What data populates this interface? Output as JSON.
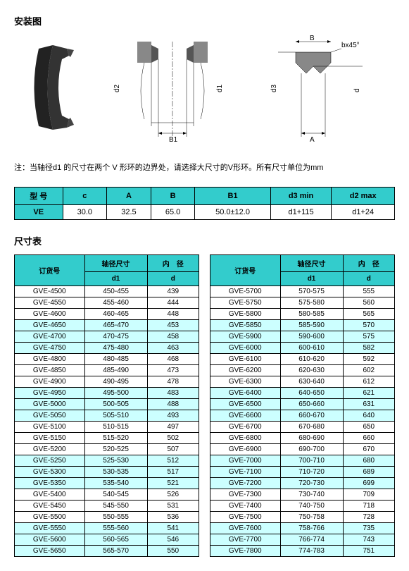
{
  "titles": {
    "install": "安装图",
    "dimTable": "尺寸表"
  },
  "note": "注：当轴径d1 的尺寸在两个 V 形环的边界处，请选择大尺寸的V形环。所有尺寸单位为mm",
  "diagram": {
    "labels": {
      "B": "B",
      "bx45": "bx45°",
      "A": "A",
      "B1": "B1",
      "d1": "d1",
      "d2": "d2",
      "d3": "d3",
      "d": "d"
    }
  },
  "spec": {
    "headers": {
      "model": "型 号",
      "c": "c",
      "A": "A",
      "B": "B",
      "B1": "B1",
      "d3min": "d3 min",
      "d2max": "d2 max"
    },
    "row": {
      "model": "VE",
      "c": "30.0",
      "A": "32.5",
      "B": "65.0",
      "B1": "50.0±12.0",
      "d3min": "d1+115",
      "d2max": "d1+24"
    }
  },
  "dimHeaders": {
    "order": "订货号",
    "shaft": "轴径尺寸",
    "shaftSub": "d1",
    "id": "内　径",
    "idSub": "d"
  },
  "left": [
    {
      "cls": "",
      "r": [
        [
          "GVE-4500",
          "450-455",
          "439"
        ],
        [
          "GVE-4550",
          "455-460",
          "444"
        ],
        [
          "GVE-4600",
          "460-465",
          "448"
        ]
      ]
    },
    {
      "cls": "alt",
      "r": [
        [
          "GVE-4650",
          "465-470",
          "453"
        ],
        [
          "GVE-4700",
          "470-475",
          "458"
        ],
        [
          "GVE-4750",
          "475-480",
          "463"
        ]
      ]
    },
    {
      "cls": "",
      "r": [
        [
          "GVE-4800",
          "480-485",
          "468"
        ],
        [
          "GVE-4850",
          "485-490",
          "473"
        ],
        [
          "GVE-4900",
          "490-495",
          "478"
        ]
      ]
    },
    {
      "cls": "alt",
      "r": [
        [
          "GVE-4950",
          "495-500",
          "483"
        ],
        [
          "GVE-5000",
          "500-505",
          "488"
        ],
        [
          "GVE-5050",
          "505-510",
          "493"
        ]
      ]
    },
    {
      "cls": "",
      "r": [
        [
          "GVE-5100",
          "510-515",
          "497"
        ],
        [
          "GVE-5150",
          "515-520",
          "502"
        ],
        [
          "GVE-5200",
          "520-525",
          "507"
        ]
      ]
    },
    {
      "cls": "alt",
      "r": [
        [
          "GVE-5250",
          "525-530",
          "512"
        ],
        [
          "GVE-5300",
          "530-535",
          "517"
        ],
        [
          "GVE-5350",
          "535-540",
          "521"
        ]
      ]
    },
    {
      "cls": "",
      "r": [
        [
          "GVE-5400",
          "540-545",
          "526"
        ],
        [
          "GVE-5450",
          "545-550",
          "531"
        ],
        [
          "GVE-5500",
          "550-555",
          "536"
        ]
      ]
    },
    {
      "cls": "alt",
      "r": [
        [
          "GVE-5550",
          "555-560",
          "541"
        ],
        [
          "GVE-5600",
          "560-565",
          "546"
        ],
        [
          "GVE-5650",
          "565-570",
          "550"
        ]
      ]
    }
  ],
  "right": [
    {
      "cls": "",
      "r": [
        [
          "GVE-5700",
          "570-575",
          "555"
        ],
        [
          "GVE-5750",
          "575-580",
          "560"
        ],
        [
          "GVE-5800",
          "580-585",
          "565"
        ]
      ]
    },
    {
      "cls": "alt",
      "r": [
        [
          "GVE-5850",
          "585-590",
          "570"
        ],
        [
          "GVE-5900",
          "590-600",
          "575"
        ],
        [
          "GVE-6000",
          "600-610",
          "582"
        ]
      ]
    },
    {
      "cls": "",
      "r": [
        [
          "GVE-6100",
          "610-620",
          "592"
        ],
        [
          "GVE-6200",
          "620-630",
          "602"
        ],
        [
          "GVE-6300",
          "630-640",
          "612"
        ]
      ]
    },
    {
      "cls": "alt",
      "r": [
        [
          "GVE-6400",
          "640-650",
          "621"
        ],
        [
          "GVE-6500",
          "650-660",
          "631"
        ],
        [
          "GVE-6600",
          "660-670",
          "640"
        ]
      ]
    },
    {
      "cls": "",
      "r": [
        [
          "GVE-6700",
          "670-680",
          "650"
        ],
        [
          "GVE-6800",
          "680-690",
          "660"
        ],
        [
          "GVE-6900",
          "690-700",
          "670"
        ]
      ]
    },
    {
      "cls": "alt",
      "r": [
        [
          "GVE-7000",
          "700-710",
          "680"
        ],
        [
          "GVE-7100",
          "710-720",
          "689"
        ],
        [
          "GVE-7200",
          "720-730",
          "699"
        ]
      ]
    },
    {
      "cls": "",
      "r": [
        [
          "GVE-7300",
          "730-740",
          "709"
        ],
        [
          "GVE-7400",
          "740-750",
          "718"
        ],
        [
          "GVE-7500",
          "750-758",
          "728"
        ]
      ]
    },
    {
      "cls": "alt",
      "r": [
        [
          "GVE-7600",
          "758-766",
          "735"
        ],
        [
          "GVE-7700",
          "766-774",
          "743"
        ],
        [
          "GVE-7800",
          "774-783",
          "751"
        ]
      ]
    }
  ],
  "style": {
    "headerBg": "#33cccc",
    "altBg": "#ccffff"
  }
}
